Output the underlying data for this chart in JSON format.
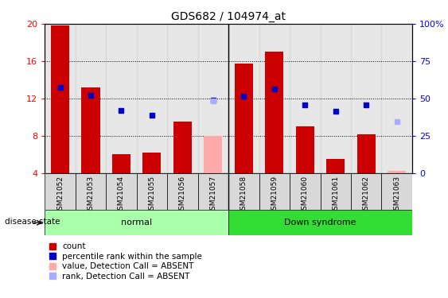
{
  "title": "GDS682 / 104974_at",
  "samples": [
    "GSM21052",
    "GSM21053",
    "GSM21054",
    "GSM21055",
    "GSM21056",
    "GSM21057",
    "GSM21058",
    "GSM21059",
    "GSM21060",
    "GSM21061",
    "GSM21062",
    "GSM21063"
  ],
  "bar_values": [
    19.8,
    13.2,
    6.0,
    6.2,
    9.5,
    null,
    15.7,
    17.0,
    9.0,
    5.5,
    8.1,
    null
  ],
  "bar_absent_values": [
    null,
    null,
    null,
    null,
    null,
    8.0,
    null,
    null,
    null,
    null,
    null,
    4.2
  ],
  "dot_values": [
    13.2,
    12.3,
    10.7,
    10.2,
    null,
    11.8,
    12.2,
    13.0,
    11.3,
    10.6,
    11.3,
    null
  ],
  "dot_absent_values": [
    null,
    null,
    null,
    null,
    null,
    11.7,
    null,
    null,
    null,
    null,
    null,
    9.5
  ],
  "ylim_left": [
    4,
    20
  ],
  "ylim_right": [
    0,
    100
  ],
  "yticks_left": [
    4,
    8,
    12,
    16,
    20
  ],
  "yticks_right": [
    0,
    25,
    50,
    75,
    100
  ],
  "ytick_labels_right": [
    "0",
    "25",
    "50",
    "75",
    "100%"
  ],
  "disease_groups": [
    {
      "label": "normal",
      "start": 0,
      "end": 6,
      "color": "#aaffaa"
    },
    {
      "label": "Down syndrome",
      "start": 6,
      "end": 12,
      "color": "#33dd33"
    }
  ],
  "bar_color_present": "#cc0000",
  "bar_color_absent": "#ffaaaa",
  "dot_color_present": "#0000cc",
  "dot_color_absent": "#aaaaff",
  "legend_items": [
    {
      "label": "count",
      "color": "#cc0000"
    },
    {
      "label": "percentile rank within the sample",
      "color": "#0000cc"
    },
    {
      "label": "value, Detection Call = ABSENT",
      "color": "#ffaaaa"
    },
    {
      "label": "rank, Detection Call = ABSENT",
      "color": "#aaaaff"
    }
  ]
}
